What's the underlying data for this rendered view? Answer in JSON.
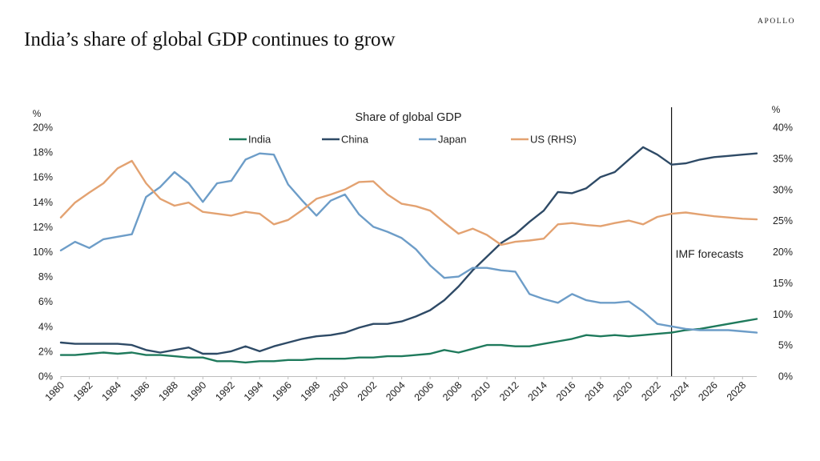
{
  "brand": "APOLLO",
  "headline": "India’s share of global GDP continues to grow",
  "chart_data": {
    "type": "line",
    "title": "Share of global GDP",
    "left_axis_unit": "%",
    "right_axis_unit": "%",
    "left_axis": {
      "min": 0,
      "max": 20,
      "step": 2,
      "tick_labels": [
        "0%",
        "2%",
        "4%",
        "6%",
        "8%",
        "10%",
        "12%",
        "14%",
        "16%",
        "18%",
        "20%"
      ]
    },
    "right_axis": {
      "min": 0,
      "max": 40,
      "step": 5,
      "tick_labels": [
        "0%",
        "5%",
        "10%",
        "15%",
        "20%",
        "25%",
        "30%",
        "35%",
        "40%"
      ]
    },
    "x": [
      1980,
      1981,
      1982,
      1983,
      1984,
      1985,
      1986,
      1987,
      1988,
      1989,
      1990,
      1991,
      1992,
      1993,
      1994,
      1995,
      1996,
      1997,
      1998,
      1999,
      2000,
      2001,
      2002,
      2003,
      2004,
      2005,
      2006,
      2007,
      2008,
      2009,
      2010,
      2011,
      2012,
      2013,
      2014,
      2015,
      2016,
      2017,
      2018,
      2019,
      2020,
      2021,
      2022,
      2023,
      2024,
      2025,
      2026,
      2027,
      2028,
      2029
    ],
    "x_tick_labels": [
      "1980",
      "1982",
      "1984",
      "1986",
      "1988",
      "1990",
      "1992",
      "1994",
      "1996",
      "1998",
      "2000",
      "2002",
      "2004",
      "2006",
      "2008",
      "2010",
      "2012",
      "2014",
      "2016",
      "2018",
      "2020",
      "2022",
      "2024",
      "2026",
      "2028"
    ],
    "series": [
      {
        "name": "India",
        "axis": "left",
        "color": "#1f7a5c",
        "values": [
          1.7,
          1.7,
          1.8,
          1.9,
          1.8,
          1.9,
          1.7,
          1.7,
          1.6,
          1.5,
          1.5,
          1.2,
          1.2,
          1.1,
          1.2,
          1.2,
          1.3,
          1.3,
          1.4,
          1.4,
          1.4,
          1.5,
          1.5,
          1.6,
          1.6,
          1.7,
          1.8,
          2.1,
          1.9,
          2.2,
          2.5,
          2.5,
          2.4,
          2.4,
          2.6,
          2.8,
          3.0,
          3.3,
          3.2,
          3.3,
          3.2,
          3.3,
          3.4,
          3.5,
          3.7,
          3.8,
          4.0,
          4.2,
          4.4,
          4.6
        ]
      },
      {
        "name": "China",
        "axis": "left",
        "color": "#2e4a66",
        "values": [
          2.7,
          2.6,
          2.6,
          2.6,
          2.6,
          2.5,
          2.1,
          1.9,
          2.1,
          2.3,
          1.8,
          1.8,
          2.0,
          2.4,
          2.0,
          2.4,
          2.7,
          3.0,
          3.2,
          3.3,
          3.5,
          3.9,
          4.2,
          4.2,
          4.4,
          4.8,
          5.3,
          6.1,
          7.2,
          8.5,
          9.6,
          10.7,
          11.4,
          12.4,
          13.3,
          14.8,
          14.7,
          15.1,
          16.0,
          16.4,
          17.4,
          18.4,
          17.8,
          17.0,
          17.1,
          17.4,
          17.6,
          17.7,
          17.8,
          17.9
        ]
      },
      {
        "name": "Japan",
        "axis": "left",
        "color": "#6d9dc8",
        "values": [
          10.1,
          10.8,
          10.3,
          11.0,
          11.2,
          11.4,
          14.4,
          15.2,
          16.4,
          15.5,
          14.0,
          15.5,
          15.7,
          17.4,
          17.9,
          17.8,
          15.4,
          14.1,
          12.9,
          14.1,
          14.6,
          13.0,
          12.0,
          11.6,
          11.1,
          10.2,
          8.9,
          7.9,
          8.0,
          8.7,
          8.7,
          8.5,
          8.4,
          6.6,
          6.2,
          5.9,
          6.6,
          6.1,
          5.9,
          5.9,
          6.0,
          5.2,
          4.2,
          4.0,
          3.8,
          3.7,
          3.7,
          3.7,
          3.6,
          3.5
        ]
      },
      {
        "name": "US (RHS)",
        "axis": "right",
        "color": "#e3a271",
        "values": [
          25.5,
          27.9,
          29.5,
          31.0,
          33.4,
          34.6,
          31.0,
          28.5,
          27.4,
          27.9,
          26.4,
          26.1,
          25.8,
          26.4,
          26.1,
          24.4,
          25.1,
          26.7,
          28.5,
          29.2,
          30.0,
          31.2,
          31.3,
          29.2,
          27.7,
          27.3,
          26.6,
          24.7,
          22.9,
          23.7,
          22.7,
          21.1,
          21.6,
          21.8,
          22.1,
          24.4,
          24.6,
          24.3,
          24.1,
          24.6,
          25.0,
          24.4,
          25.6,
          26.1,
          26.3,
          26.0,
          25.7,
          25.5,
          25.3,
          25.2
        ]
      }
    ],
    "annotation": {
      "text": "IMF forecasts",
      "x": 2023
    }
  }
}
